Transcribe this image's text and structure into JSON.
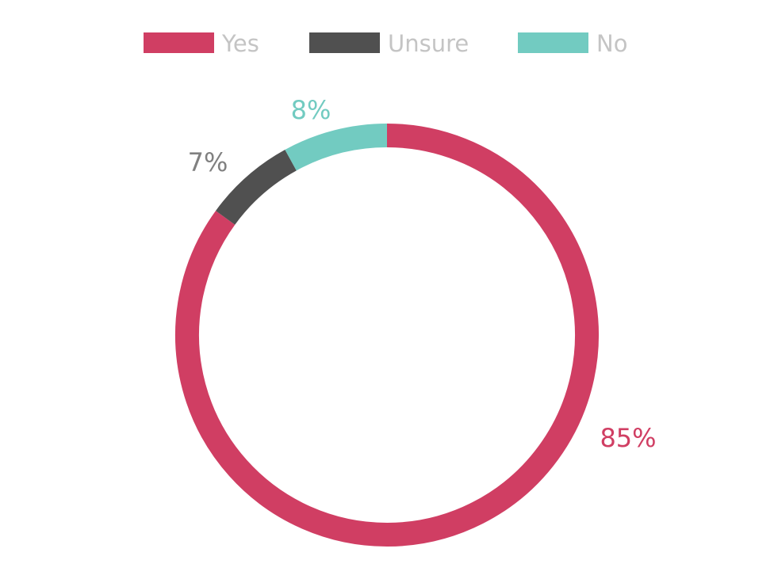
{
  "chart_data": {
    "type": "pie",
    "variant": "donut",
    "title": "",
    "legend_position": "top",
    "slices": [
      {
        "name": "Yes",
        "value": 85,
        "label": "85%",
        "color": "#d03e63"
      },
      {
        "name": "Unsure",
        "value": 7,
        "label": "7%",
        "color": "#505050",
        "label_color": "#808080"
      },
      {
        "name": "No",
        "value": 8,
        "label": "8%",
        "color": "#72cbc1"
      }
    ]
  }
}
